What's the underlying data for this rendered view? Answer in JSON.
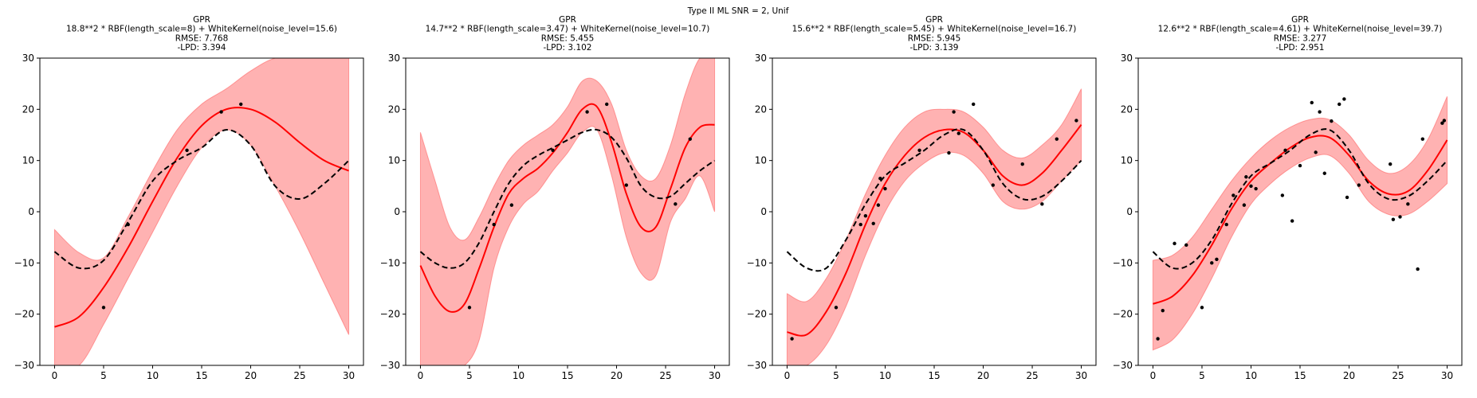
{
  "figure": {
    "suptitle": "Type II ML SNR = 2, Unif"
  },
  "chart_data": [
    {
      "type": "line",
      "title_lines": [
        "GPR",
        "18.8**2 * RBF(length_scale=8) + WhiteKernel(noise_level=15.6)",
        "RMSE: 7.768",
        "-LPD: 3.394"
      ],
      "xlim": [
        -1.5,
        31.5
      ],
      "ylim": [
        -30,
        30
      ],
      "xticks": [
        0,
        5,
        10,
        15,
        20,
        25,
        30
      ],
      "yticks": [
        -30,
        -20,
        -10,
        0,
        10,
        20,
        30
      ],
      "colors": {
        "mean": "#ff0000",
        "band": "#ff6666",
        "truth": "#000000",
        "points": "#000000"
      },
      "x": [
        0,
        2.5,
        5,
        7.5,
        10,
        12.5,
        15,
        17.5,
        20,
        22.5,
        25,
        27.5,
        30
      ],
      "series": [
        {
          "kind": "mean",
          "values": [
            -22.5,
            -20.5,
            -14.8,
            -7.0,
            2.0,
            10.5,
            16.8,
            20.0,
            20.0,
            17.5,
            13.5,
            10.0,
            8.0
          ]
        },
        {
          "kind": "band_upper",
          "values": [
            -3.5,
            -8.0,
            -9.0,
            -1.0,
            8.0,
            16.0,
            21.0,
            24.0,
            27.5,
            30.0,
            30.0,
            30.0,
            30.0
          ]
        },
        {
          "kind": "band_lower",
          "values": [
            -30.0,
            -30.0,
            -22.0,
            -13.0,
            -4.0,
            5.0,
            12.5,
            16.0,
            13.0,
            5.0,
            -4.0,
            -14.0,
            -24.0
          ]
        },
        {
          "kind": "truth",
          "values": [
            -7.8,
            -11.0,
            -9.5,
            -2.0,
            6.0,
            10.0,
            12.5,
            16.0,
            13.0,
            5.0,
            2.5,
            5.5,
            10.0
          ]
        }
      ],
      "points": [
        [
          5,
          -18.7
        ],
        [
          7.5,
          -2.5
        ],
        [
          13.5,
          12
        ],
        [
          17,
          19.5
        ],
        [
          19,
          21
        ]
      ]
    },
    {
      "type": "line",
      "title_lines": [
        "GPR",
        "14.7**2 * RBF(length_scale=3.47) + WhiteKernel(noise_level=10.7)",
        "RMSE: 5.455",
        "-LPD: 3.102"
      ],
      "xlim": [
        -1.5,
        31.5
      ],
      "ylim": [
        -30,
        30
      ],
      "xticks": [
        0,
        5,
        10,
        15,
        20,
        25,
        30
      ],
      "yticks": [
        -30,
        -20,
        -10,
        0,
        10,
        20,
        30
      ],
      "colors": {
        "mean": "#ff0000",
        "band": "#ff6666",
        "truth": "#000000",
        "points": "#000000"
      },
      "x": [
        0,
        1.5,
        3,
        4.5,
        6,
        7.5,
        9,
        10.5,
        12,
        13.5,
        15,
        16.5,
        18,
        19.5,
        21,
        22.5,
        24,
        25.5,
        27,
        28.5,
        30
      ],
      "series": [
        {
          "kind": "mean",
          "values": [
            -10.5,
            -16.5,
            -19.5,
            -18.0,
            -11.0,
            -3.0,
            3.5,
            6.5,
            8.5,
            11.5,
            15.5,
            20.0,
            20.5,
            13.5,
            3.5,
            -3.0,
            -3.0,
            4.5,
            12.5,
            16.5,
            17.0
          ]
        },
        {
          "kind": "band_upper",
          "values": [
            15.5,
            6.0,
            -3.0,
            -5.5,
            -1.0,
            5.0,
            10.0,
            13.0,
            15.0,
            17.0,
            20.5,
            25.5,
            25.5,
            21.0,
            12.0,
            7.0,
            6.5,
            13.0,
            23.0,
            30.0,
            30.0
          ]
        },
        {
          "kind": "band_lower",
          "values": [
            -30.0,
            -30.0,
            -30.0,
            -30.0,
            -25.0,
            -11.0,
            -3.0,
            1.5,
            4.0,
            8.0,
            11.5,
            15.5,
            16.0,
            7.0,
            -5.0,
            -12.0,
            -12.5,
            -2.0,
            2.5,
            7.0,
            0.0
          ]
        },
        {
          "kind": "truth",
          "values": [
            -7.8,
            -10.0,
            -11.0,
            -10.0,
            -6.0,
            0.0,
            5.5,
            9.0,
            11.0,
            12.5,
            14.0,
            15.5,
            16.0,
            14.5,
            10.5,
            5.0,
            2.8,
            3.0,
            5.5,
            8.0,
            10.0
          ]
        }
      ],
      "points": [
        [
          5,
          -18.7
        ],
        [
          7.5,
          -2.5
        ],
        [
          9.3,
          1.3
        ],
        [
          13.5,
          12
        ],
        [
          17,
          19.5
        ],
        [
          19,
          21
        ],
        [
          21,
          5.2
        ],
        [
          26,
          1.5
        ],
        [
          27.5,
          14.2
        ]
      ]
    },
    {
      "type": "line",
      "title_lines": [
        "GPR",
        "15.6**2 * RBF(length_scale=5.45) + WhiteKernel(noise_level=16.7)",
        "RMSE: 5.945",
        "-LPD: 3.139"
      ],
      "xlim": [
        -1.5,
        31.5
      ],
      "ylim": [
        -30,
        30
      ],
      "xticks": [
        0,
        5,
        10,
        15,
        20,
        25,
        30
      ],
      "yticks": [
        -30,
        -20,
        -10,
        0,
        10,
        20,
        30
      ],
      "colors": {
        "mean": "#ff0000",
        "band": "#ff6666",
        "truth": "#000000",
        "points": "#000000"
      },
      "x": [
        0,
        2,
        4,
        6,
        8,
        10,
        12,
        14,
        16,
        18,
        20,
        22,
        24,
        26,
        28,
        30
      ],
      "series": [
        {
          "kind": "mean",
          "values": [
            -23.5,
            -24.0,
            -19.5,
            -12.0,
            -2.5,
            5.5,
            11.0,
            14.5,
            16.0,
            15.5,
            12.0,
            7.0,
            5.2,
            7.5,
            12.0,
            17.0
          ]
        },
        {
          "kind": "band_upper",
          "values": [
            -16.0,
            -17.5,
            -13.0,
            -5.5,
            3.5,
            11.0,
            16.5,
            19.5,
            20.0,
            19.5,
            16.5,
            12.0,
            10.5,
            13.0,
            17.0,
            24.0
          ]
        },
        {
          "kind": "band_lower",
          "values": [
            -30.0,
            -30.0,
            -26.0,
            -18.5,
            -8.5,
            0.0,
            6.0,
            9.5,
            11.5,
            11.0,
            7.5,
            2.0,
            0.5,
            2.0,
            6.0,
            10.0
          ]
        },
        {
          "kind": "truth",
          "values": [
            -7.8,
            -11.0,
            -11.0,
            -5.5,
            1.5,
            7.0,
            9.5,
            12.0,
            15.0,
            16.0,
            12.0,
            5.5,
            2.5,
            3.0,
            6.0,
            10.0
          ]
        }
      ],
      "points": [
        [
          0.5,
          -24.8
        ],
        [
          5,
          -18.7
        ],
        [
          7.5,
          -2.5
        ],
        [
          8,
          -0.8
        ],
        [
          8.8,
          -2.3
        ],
        [
          9.3,
          1.3
        ],
        [
          9.5,
          6.5
        ],
        [
          10,
          4.5
        ],
        [
          13.5,
          12
        ],
        [
          16.5,
          11.5
        ],
        [
          17,
          19.5
        ],
        [
          17.5,
          15.3
        ],
        [
          19,
          21
        ],
        [
          21,
          5.2
        ],
        [
          24,
          9.3
        ],
        [
          26,
          1.5
        ],
        [
          27.5,
          14.2
        ],
        [
          29.5,
          17.8
        ]
      ]
    },
    {
      "type": "line",
      "title_lines": [
        "GPR",
        "12.6**2 * RBF(length_scale=4.61) + WhiteKernel(noise_level=39.7)",
        "RMSE: 3.277",
        "-LPD: 2.951"
      ],
      "xlim": [
        -1.5,
        31.5
      ],
      "ylim": [
        -30,
        30
      ],
      "xticks": [
        0,
        5,
        10,
        15,
        20,
        25,
        30
      ],
      "yticks": [
        -30,
        -20,
        -10,
        0,
        10,
        20,
        30
      ],
      "colors": {
        "mean": "#ff0000",
        "band": "#ff6666",
        "truth": "#000000",
        "points": "#000000"
      },
      "x": [
        0,
        2,
        4,
        6,
        8,
        10,
        12,
        14,
        16,
        18,
        20,
        22,
        24,
        26,
        28,
        30
      ],
      "series": [
        {
          "kind": "mean",
          "values": [
            -18.0,
            -16.5,
            -12.5,
            -6.5,
            0.5,
            6.0,
            9.5,
            12.5,
            14.5,
            14.5,
            11.0,
            6.0,
            3.5,
            4.0,
            8.0,
            14.0
          ]
        },
        {
          "kind": "band_upper",
          "values": [
            -9.5,
            -8.5,
            -5.0,
            0.5,
            6.0,
            10.5,
            14.0,
            16.5,
            18.0,
            18.0,
            15.0,
            10.0,
            7.5,
            9.0,
            14.0,
            22.5
          ]
        },
        {
          "kind": "band_lower",
          "values": [
            -27.0,
            -25.0,
            -20.0,
            -13.0,
            -5.0,
            1.5,
            5.5,
            8.5,
            10.5,
            11.0,
            7.5,
            2.0,
            -0.5,
            -0.5,
            2.0,
            5.5
          ]
        },
        {
          "kind": "truth",
          "values": [
            -7.8,
            -11.0,
            -10.0,
            -5.5,
            1.5,
            7.0,
            9.5,
            12.0,
            15.0,
            16.0,
            12.0,
            5.5,
            2.5,
            3.0,
            6.0,
            10.0
          ]
        }
      ],
      "points": [
        [
          0.5,
          -24.8
        ],
        [
          1,
          -19.3
        ],
        [
          2.2,
          -6.2
        ],
        [
          3.4,
          -6.5
        ],
        [
          5,
          -18.7
        ],
        [
          6,
          -10
        ],
        [
          6.5,
          -9.3
        ],
        [
          7.5,
          -2.5
        ],
        [
          8.2,
          3.2
        ],
        [
          9.3,
          1.3
        ],
        [
          9.5,
          6.8
        ],
        [
          10,
          5
        ],
        [
          10.5,
          4.5
        ],
        [
          13.2,
          3.2
        ],
        [
          13.5,
          12
        ],
        [
          14.2,
          -1.8
        ],
        [
          15,
          9
        ],
        [
          16.2,
          21.3
        ],
        [
          16.6,
          11.6
        ],
        [
          17,
          19.5
        ],
        [
          17.5,
          7.5
        ],
        [
          18.2,
          17.7
        ],
        [
          19,
          21
        ],
        [
          19.5,
          22
        ],
        [
          19.8,
          2.8
        ],
        [
          21,
          5.2
        ],
        [
          24.2,
          9.3
        ],
        [
          24.5,
          -1.5
        ],
        [
          25.2,
          -1
        ],
        [
          26,
          1.5
        ],
        [
          27,
          -11.2
        ],
        [
          27.5,
          14.2
        ],
        [
          29.5,
          17.3
        ],
        [
          29.7,
          17.8
        ]
      ]
    }
  ]
}
